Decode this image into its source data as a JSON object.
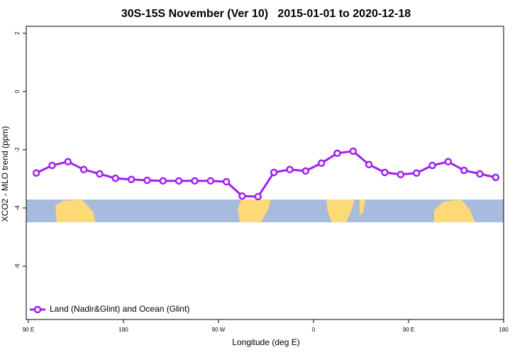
{
  "chart_data": {
    "type": "line",
    "title": "30S-15S November (Ver 10)   2015-01-01 to 2020-12-18",
    "x_label": "Longitude (deg E)",
    "y_label": "XCO2 - MLO trend (ppm)",
    "x": [
      97.5,
      112.5,
      127.5,
      142.5,
      157.5,
      172.5,
      187.5,
      202.5,
      217.5,
      232.5,
      247.5,
      262.5,
      277.5,
      292.5,
      307.5,
      322.5,
      337.5,
      352.5,
      367.5,
      382.5,
      397.5,
      412.5,
      427.5,
      442.5,
      457.5,
      472.5,
      487.5,
      502.5,
      517.5,
      532.5
    ],
    "series": [
      {
        "name": "Land (Nadir&Glint) and Ocean (Glint)",
        "color": "#a020f0",
        "values": [
          -2.8,
          -2.54,
          -2.41,
          -2.68,
          -2.83,
          -2.98,
          -3.02,
          -3.05,
          -3.07,
          -3.07,
          -3.07,
          -3.07,
          -3.1,
          -3.59,
          -3.61,
          -2.78,
          -2.68,
          -2.73,
          -2.46,
          -2.12,
          -2.05,
          -2.51,
          -2.78,
          -2.85,
          -2.8,
          -2.54,
          -2.41,
          -2.71,
          -2.83,
          -2.95
        ]
      }
    ],
    "xlim": [
      88,
      540
    ],
    "xticks": [
      {
        "value": 90,
        "label": "90 E"
      },
      {
        "value": 180,
        "label": "180"
      },
      {
        "value": 270,
        "label": "90 W"
      },
      {
        "value": 360,
        "label": "0"
      },
      {
        "value": 450,
        "label": "90 E"
      },
      {
        "value": 540,
        "label": "180"
      }
    ],
    "ylim": [
      -7.83,
      2.24
    ],
    "yticks": [
      2,
      0,
      -2,
      -4,
      -6
    ],
    "grid": false,
    "legend": "bottom-left"
  }
}
